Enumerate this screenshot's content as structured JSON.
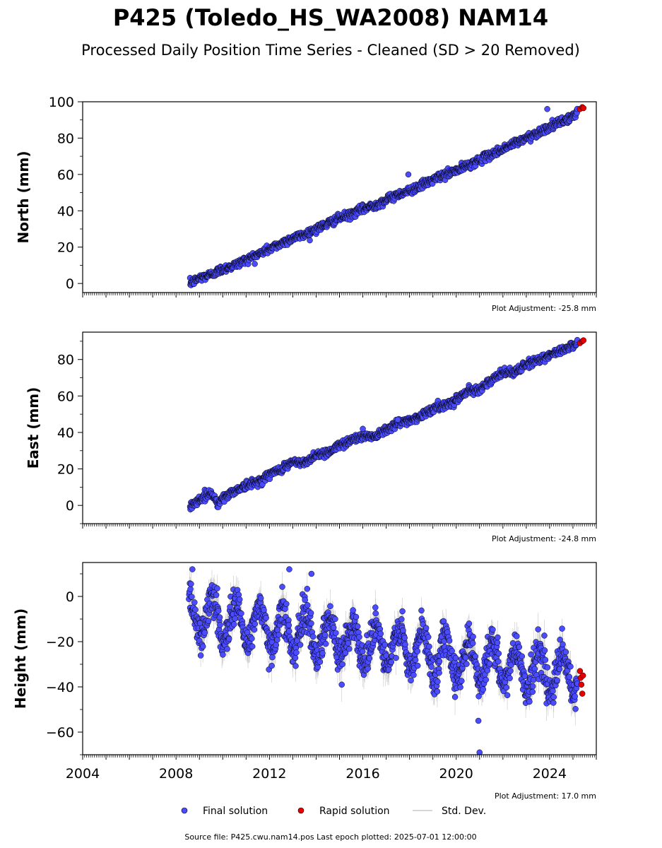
{
  "figure": {
    "title": "P425 (Toledo_HS_WA2008) NAM14",
    "subtitle": "Processed Daily Position Time Series - Cleaned (SD > 20 Removed)",
    "source_note": "Source file: P425.cwu.nam14.pos  Last epoch plotted: 2025-07-01 12:00:00"
  },
  "legend": {
    "final": "Final solution",
    "rapid": "Rapid solution",
    "std": "Std. Dev."
  },
  "colors": {
    "final": "#4b4bff",
    "rapid": "#e60000",
    "std": "#b0b0b0",
    "edge": "#000000"
  },
  "chart_data": [
    {
      "type": "scatter",
      "ylabel": "North (mm)",
      "adjustment": "Plot Adjustment: -25.8 mm",
      "xlim": [
        2004,
        2026
      ],
      "ylim": [
        -5,
        100
      ],
      "yticks": [
        0,
        20,
        40,
        60,
        80,
        100
      ],
      "ytick_labels": [
        "0",
        "20",
        "40",
        "60",
        "80",
        "100"
      ],
      "series": [
        {
          "name": "Final solution",
          "kind": "final",
          "x": [
            2008.6,
            2009.0,
            2009.5,
            2010.0,
            2010.5,
            2011.0,
            2011.5,
            2012.0,
            2012.5,
            2013.0,
            2013.5,
            2014.0,
            2014.5,
            2015.0,
            2015.5,
            2016.0,
            2016.5,
            2017.0,
            2017.5,
            2018.0,
            2018.5,
            2019.0,
            2019.5,
            2020.0,
            2020.5,
            2021.0,
            2021.5,
            2022.0,
            2022.5,
            2023.0,
            2023.5,
            2024.0,
            2024.5,
            2025.0,
            2025.2
          ],
          "y": [
            0,
            3,
            5,
            8,
            10,
            13,
            16,
            19,
            22,
            25,
            27,
            30,
            33,
            36,
            38,
            41,
            43,
            46,
            49,
            51,
            54,
            57,
            60,
            62,
            65,
            68,
            71,
            74,
            77,
            80,
            83,
            86,
            89,
            92,
            94
          ]
        },
        {
          "name": "Rapid solution",
          "kind": "rapid",
          "x": [
            2025.3,
            2025.4,
            2025.45
          ],
          "y": [
            96,
            97,
            96.5
          ]
        }
      ],
      "outliers": {
        "x": [
          2017.95,
          2023.9
        ],
        "y": [
          60,
          96
        ]
      }
    },
    {
      "type": "scatter",
      "ylabel": "East (mm)",
      "adjustment": "Plot Adjustment: -24.8 mm",
      "xlim": [
        2004,
        2026
      ],
      "ylim": [
        -10,
        95
      ],
      "yticks": [
        0,
        20,
        40,
        60,
        80
      ],
      "ytick_labels": [
        "0",
        "20",
        "40",
        "60",
        "80"
      ],
      "series": [
        {
          "name": "Final solution",
          "kind": "final",
          "x": [
            2008.6,
            2009.0,
            2009.5,
            2009.8,
            2010.0,
            2010.5,
            2011.0,
            2011.5,
            2012.0,
            2012.5,
            2013.0,
            2013.5,
            2014.0,
            2014.5,
            2015.0,
            2015.5,
            2016.0,
            2016.5,
            2017.0,
            2017.5,
            2018.0,
            2018.5,
            2019.0,
            2019.5,
            2020.0,
            2020.5,
            2021.0,
            2021.5,
            2022.0,
            2022.5,
            2023.0,
            2023.5,
            2024.0,
            2024.5,
            2025.0,
            2025.2
          ],
          "y": [
            0,
            3,
            7,
            1,
            4,
            8,
            11,
            13,
            17,
            20,
            24,
            23,
            28,
            29,
            33,
            36,
            38,
            38,
            42,
            45,
            47,
            49,
            53,
            55,
            58,
            63,
            64,
            68,
            73,
            73,
            77,
            80,
            82,
            85,
            88,
            89
          ]
        },
        {
          "name": "Rapid solution",
          "kind": "rapid",
          "x": [
            2025.3,
            2025.4,
            2025.45
          ],
          "y": [
            89,
            90,
            90.5
          ]
        }
      ],
      "outliers": {
        "x": [
          2016.0,
          2017.5
        ],
        "y": [
          42,
          47
        ]
      }
    },
    {
      "type": "scatter",
      "ylabel": "Height (mm)",
      "adjustment": "Plot Adjustment: 17.0 mm",
      "xlim": [
        2004,
        2026
      ],
      "ylim": [
        -70,
        15
      ],
      "yticks": [
        -60,
        -40,
        -20,
        0
      ],
      "ytick_labels": [
        "−60",
        "−40",
        "−20",
        "0"
      ],
      "xticks": [
        2004,
        2008,
        2012,
        2016,
        2020,
        2024
      ],
      "xtick_labels": [
        "2004",
        "2008",
        "2012",
        "2016",
        "2020",
        "2024"
      ],
      "series": [
        {
          "name": "Final solution",
          "kind": "final",
          "trend_start": -8,
          "trend_slope": -1.65,
          "seasonal_amplitude": 9,
          "scatter_sd": 4,
          "x_range": [
            2008.55,
            2025.2
          ]
        },
        {
          "name": "Rapid solution",
          "kind": "rapid",
          "x": [
            2025.3,
            2025.33,
            2025.36,
            2025.4,
            2025.43
          ],
          "y": [
            -33,
            -36,
            -39,
            -43,
            -35
          ]
        }
      ],
      "outliers": {
        "x": [
          2008.7,
          2012.85,
          2013.8,
          2020.95,
          2021.0
        ],
        "y": [
          12,
          12,
          10,
          -55,
          -69
        ]
      }
    }
  ]
}
